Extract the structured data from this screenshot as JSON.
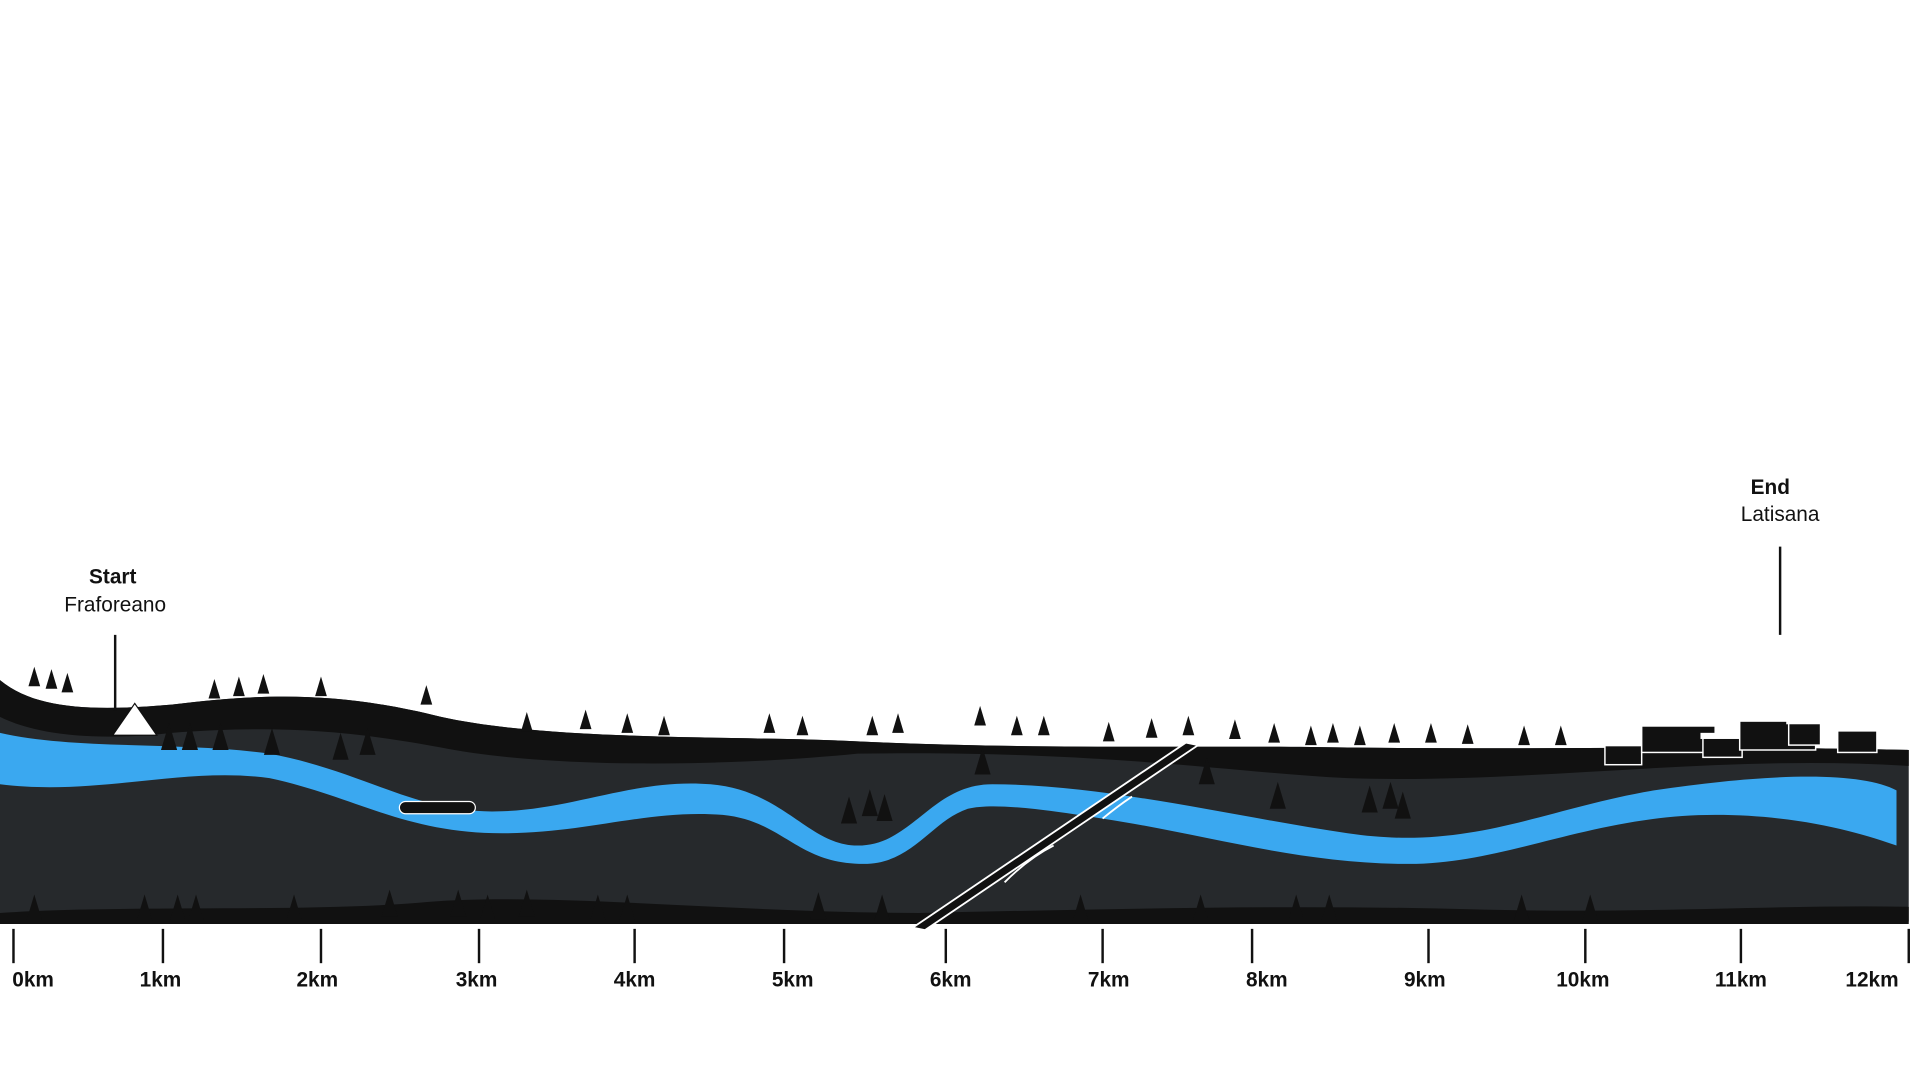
{
  "start": {
    "title": "Start",
    "place": "Fraforeano"
  },
  "end": {
    "title": "End",
    "place": "Latisana"
  },
  "scale": {
    "ticks": [
      "0km",
      "1km",
      "2km",
      "3km",
      "4km",
      "5km",
      "6km",
      "7km",
      "8km",
      "9km",
      "10km",
      "11km",
      "12km"
    ]
  }
}
